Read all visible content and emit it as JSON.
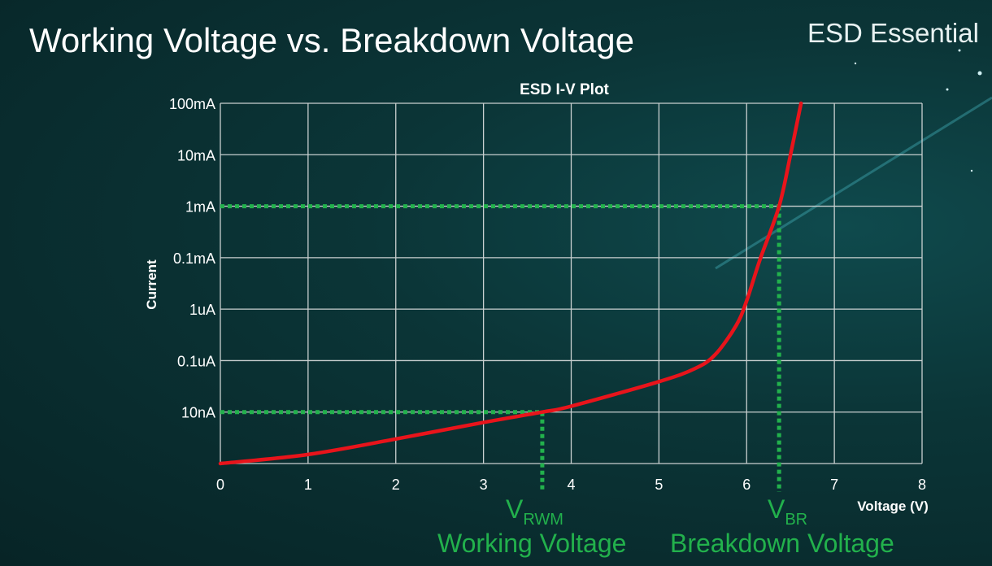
{
  "slide": {
    "title": "Working Voltage vs. Breakdown Voltage",
    "brand": "ESD Essential"
  },
  "annotations": {
    "vrwm_symbol": "V",
    "vrwm_sub": "RWM",
    "vrwm_label": "Working Voltage",
    "vbr_symbol": "V",
    "vbr_sub": "BR",
    "vbr_label": "Breakdown Voltage"
  },
  "chart_data": {
    "type": "line",
    "title": "ESD I-V Plot",
    "xlabel": "Voltage (V)",
    "ylabel": "Current",
    "xlim": [
      0,
      8
    ],
    "x_ticks": [
      "0",
      "1",
      "2",
      "3",
      "4",
      "5",
      "6",
      "7",
      "8"
    ],
    "y_ticks": [
      {
        "label": "10nA",
        "value": 1e-08
      },
      {
        "label": "0.1uA",
        "value": 1e-07
      },
      {
        "label": "1uA",
        "value": 1e-06
      },
      {
        "label": "0.1mA",
        "value": 0.0001
      },
      {
        "label": "1mA",
        "value": 0.001
      },
      {
        "label": "10mA",
        "value": 0.01
      },
      {
        "label": "100mA",
        "value": 0.1
      }
    ],
    "y_bottom_value": 1e-09,
    "grid": true,
    "series": [
      {
        "color": "#e8141b",
        "points": [
          [
            0,
            1e-09
          ],
          [
            1.0,
            1.5e-09
          ],
          [
            2.0,
            3e-09
          ],
          [
            3.0,
            6.3e-09
          ],
          [
            3.67,
            1e-08
          ],
          [
            4.0,
            1.3e-08
          ],
          [
            5.0,
            3.9e-08
          ],
          [
            5.41,
            7e-08
          ],
          [
            5.64,
            1.3e-07
          ],
          [
            5.88,
            4.8e-07
          ],
          [
            6.0,
            2.1e-06
          ],
          [
            6.15,
            8e-05
          ],
          [
            6.37,
            0.001
          ],
          [
            6.5,
            0.01
          ],
          [
            6.62,
            0.1
          ]
        ]
      }
    ],
    "reference_lines": [
      {
        "name": "VRWM",
        "voltage": 3.67,
        "current": 1e-08,
        "color": "#22b14c"
      },
      {
        "name": "VBR",
        "voltage": 6.37,
        "current": 0.001,
        "color": "#22b14c"
      }
    ]
  }
}
